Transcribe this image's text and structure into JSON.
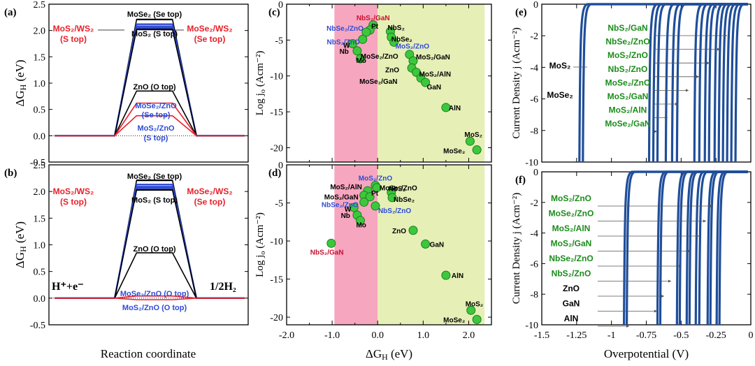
{
  "colors": {
    "black": "#000000",
    "red": "#e8202a",
    "blue": "#2e4bd6",
    "green": "#1a8c1a",
    "crimson": "#c8102e",
    "pink": "#f7a6bf",
    "yellowgreen": "#e6efb6",
    "curve": "#1f4e9a",
    "point": "#3cc83c"
  },
  "chart_data": [
    {
      "id": "a",
      "type": "line",
      "panel_label": "(a)",
      "ylabel": "ΔG_H (eV)",
      "ylim": [
        -0.5,
        2.5
      ],
      "yticks": [
        "-0.5",
        "0.0",
        "0.5",
        "1.0",
        "1.5",
        "2.0",
        "2.5"
      ],
      "plateaus": [
        {
          "label": "MoSe₂ (Se top)",
          "value": 2.21,
          "color": "black"
        },
        {
          "label": "",
          "value": 2.12,
          "color": "blue"
        },
        {
          "label": "",
          "value": 2.08,
          "color": "blue"
        },
        {
          "label": "",
          "value": 2.05,
          "color": "blue"
        },
        {
          "label": "MoS₂ (S top)",
          "value": 2.02,
          "color": "black"
        },
        {
          "label": "ZnO (O top)",
          "value": 0.85,
          "color": "black"
        },
        {
          "label": "",
          "value": 0.62,
          "color": "red"
        },
        {
          "label": "",
          "value": 0.38,
          "color": "red"
        }
      ],
      "annotations": [
        {
          "text": "MoSe₂ (Se top)",
          "color": "black"
        },
        {
          "text": "MoS₂ (S top)",
          "color": "black"
        },
        {
          "text": "MoS₂/WS₂",
          "color": "red"
        },
        {
          "text": "(S top)",
          "color": "red"
        },
        {
          "text": "MoSe₂/WS₂",
          "color": "red"
        },
        {
          "text": "(Se top)",
          "color": "red"
        },
        {
          "text": "ZnO (O top)",
          "color": "black"
        },
        {
          "text": "MoSe₂/ZnO",
          "color": "blue"
        },
        {
          "text": "(Se top)",
          "color": "blue"
        },
        {
          "text": "MoS₂/ZnO",
          "color": "blue"
        },
        {
          "text": "(S top)",
          "color": "blue"
        }
      ]
    },
    {
      "id": "b",
      "type": "line",
      "panel_label": "(b)",
      "ylabel": "ΔG_H (eV)",
      "xlabel": "Reaction coordinate",
      "ylim": [
        -0.5,
        2.5
      ],
      "yticks": [
        "-0.5",
        "0.0",
        "0.5",
        "1.0",
        "1.5",
        "2.0",
        "2.5"
      ],
      "state_left": "H⁺+e⁻",
      "state_right": "1/2H₂",
      "plateaus": [
        {
          "label": "MoSe₂ (Se top)",
          "value": 2.21,
          "color": "black"
        },
        {
          "label": "",
          "value": 2.13,
          "color": "blue"
        },
        {
          "label": "",
          "value": 2.09,
          "color": "blue"
        },
        {
          "label": "",
          "value": 2.06,
          "color": "blue"
        },
        {
          "label": "MoS₂ (S top)",
          "value": 2.03,
          "color": "black"
        },
        {
          "label": "ZnO (O top)",
          "value": 0.85,
          "color": "black"
        },
        {
          "label": "",
          "value": 0.04,
          "color": "red"
        },
        {
          "label": "",
          "value": -0.03,
          "color": "red"
        }
      ],
      "annotations": [
        {
          "text": "MoSe₂ (Se top)",
          "color": "black"
        },
        {
          "text": "MoS₂ (S top)",
          "color": "black"
        },
        {
          "text": "MoS₂/WS₂",
          "color": "red"
        },
        {
          "text": "(S top)",
          "color": "red"
        },
        {
          "text": "MoSe₂/WS₂",
          "color": "red"
        },
        {
          "text": "(Se top)",
          "color": "red"
        },
        {
          "text": "ZnO (O top)",
          "color": "black"
        },
        {
          "text": "MoSe₂/ZnO (O top)",
          "color": "blue"
        },
        {
          "text": "MoS₂/ZnO (O top)",
          "color": "blue"
        }
      ]
    },
    {
      "id": "c",
      "type": "scatter",
      "panel_label": "(c)",
      "ylabel": "Log j₀ (Acm⁻²)",
      "xlim": [
        -2.0,
        2.5
      ],
      "ylim": [
        -22,
        0
      ],
      "yticks": [
        "-20",
        "-15",
        "-10",
        "-5",
        "0"
      ],
      "bands": [
        [
          -0.95,
          0.0,
          "pink"
        ],
        [
          0.0,
          2.35,
          "yellowgreen"
        ]
      ],
      "points": [
        {
          "label": "NbS₂/GaN",
          "x": -0.1,
          "y": -2.9,
          "color": "crimson"
        },
        {
          "label": "Pt",
          "x": -0.17,
          "y": -3.6,
          "color": "black"
        },
        {
          "label": "NbSe₂/ZnO",
          "x": -0.25,
          "y": -3.9,
          "color": "blue"
        },
        {
          "label": "NbS₂/ZnO",
          "x": -0.33,
          "y": -4.9,
          "color": "blue"
        },
        {
          "label": "W",
          "x": -0.55,
          "y": -5.5,
          "color": "black"
        },
        {
          "label": "Nb",
          "x": -0.45,
          "y": -6.5,
          "color": "black"
        },
        {
          "label": "Mo",
          "x": -0.38,
          "y": -7.6,
          "color": "black"
        },
        {
          "label": "NbS₂",
          "x": 0.28,
          "y": -3.8,
          "color": "black"
        },
        {
          "label": "NbSe₂",
          "x": 0.3,
          "y": -4.6,
          "color": "black"
        },
        {
          "label": "MoS₂/ZnO",
          "x": 0.36,
          "y": -5.3,
          "color": "blue"
        },
        {
          "label": "MoSe₂/ZnO",
          "x": 0.7,
          "y": -7.0,
          "color": "black"
        },
        {
          "label": "MoS₂/GaN",
          "x": 0.78,
          "y": -7.9,
          "color": "black"
        },
        {
          "label": "ZnO",
          "x": 0.75,
          "y": -8.9,
          "color": "black"
        },
        {
          "label": "MoS₂/AlN",
          "x": 0.85,
          "y": -9.5,
          "color": "black"
        },
        {
          "label": "MoSe₂/GaN",
          "x": 0.95,
          "y": -10.3,
          "color": "black"
        },
        {
          "label": "GaN",
          "x": 1.05,
          "y": -10.9,
          "color": "black"
        },
        {
          "label": "AlN",
          "x": 1.5,
          "y": -14.4,
          "color": "black"
        },
        {
          "label": "MoS₂",
          "x": 2.03,
          "y": -19.1,
          "color": "black"
        },
        {
          "label": "MoSe₂",
          "x": 2.18,
          "y": -20.3,
          "color": "black"
        }
      ]
    },
    {
      "id": "d",
      "type": "scatter",
      "panel_label": "(d)",
      "ylabel": "Log j₀ (Acm⁻²)",
      "xlabel": "ΔG_H (eV)",
      "xlim": [
        -2.0,
        2.5
      ],
      "ylim": [
        -21,
        0
      ],
      "xticks": [
        "-2.0",
        "-1.0",
        "0.0",
        "1.0",
        "2.0"
      ],
      "yticks": [
        "-20",
        "-15",
        "-10",
        "-5",
        "0"
      ],
      "bands": [
        [
          -0.95,
          0.0,
          "pink"
        ],
        [
          0.0,
          2.35,
          "yellowgreen"
        ]
      ],
      "points": [
        {
          "label": "MoS₂/ZnO",
          "x": -0.05,
          "y": -2.7,
          "color": "blue"
        },
        {
          "label": "MoSe₂/ZnO",
          "x": -0.02,
          "y": -3.0,
          "color": "black"
        },
        {
          "label": "MoS₂/AlN",
          "x": -0.22,
          "y": -3.4,
          "color": "black"
        },
        {
          "label": "MoS₂/GaN",
          "x": -0.3,
          "y": -4.0,
          "color": "black"
        },
        {
          "label": "Pt",
          "x": -0.17,
          "y": -4.2,
          "color": "black"
        },
        {
          "label": "NbSe₂/ZnO",
          "x": -0.3,
          "y": -4.9,
          "color": "blue"
        },
        {
          "label": "NbS₂",
          "x": 0.3,
          "y": -3.6,
          "color": "black"
        },
        {
          "label": "NbSe₂",
          "x": 0.32,
          "y": -4.3,
          "color": "black"
        },
        {
          "label": "NbS₂/ZnO",
          "x": -0.05,
          "y": -5.4,
          "color": "blue"
        },
        {
          "label": "W",
          "x": -0.52,
          "y": -5.6,
          "color": "black"
        },
        {
          "label": "Nb",
          "x": -0.45,
          "y": -6.6,
          "color": "black"
        },
        {
          "label": "Mo",
          "x": -0.38,
          "y": -7.3,
          "color": "black"
        },
        {
          "label": "NbS₂/GaN",
          "x": -1.02,
          "y": -10.3,
          "color": "crimson"
        },
        {
          "label": "ZnO",
          "x": 0.78,
          "y": -8.6,
          "color": "black"
        },
        {
          "label": "GaN",
          "x": 1.05,
          "y": -10.4,
          "color": "black"
        },
        {
          "label": "AlN",
          "x": 1.5,
          "y": -14.5,
          "color": "black"
        },
        {
          "label": "MoS₂",
          "x": 2.05,
          "y": -19.1,
          "color": "black"
        },
        {
          "label": "MoSe₂",
          "x": 2.18,
          "y": -20.3,
          "color": "black"
        }
      ]
    },
    {
      "id": "e",
      "type": "line",
      "panel_label": "(e)",
      "ylabel": "Current Density j (Acm⁻²)",
      "xlim": [
        -1.5,
        0
      ],
      "ylim": [
        -10,
        0
      ],
      "yticks": [
        "-10",
        "-8",
        "-6",
        "-4",
        "-2",
        "0"
      ],
      "onsets": [
        -1.22,
        -1.195,
        -0.72,
        -0.69,
        -0.66,
        -0.6,
        -0.555,
        -0.52,
        -0.395,
        -0.36,
        -0.32,
        -0.29,
        -0.25,
        -0.22,
        -0.19,
        -0.16,
        -0.13,
        -0.1
      ],
      "legend": [
        {
          "label": "NbS₂/GaN",
          "color": "green"
        },
        {
          "label": "NbSe₂/ZnO",
          "color": "green"
        },
        {
          "label": "MoS₂/ZnO",
          "color": "green"
        },
        {
          "label": "NbS₂/ZnO",
          "color": "green"
        },
        {
          "label": "MoSe₂/ZnO",
          "color": "green"
        },
        {
          "label": "MoS₂/GaN",
          "color": "green"
        },
        {
          "label": "MoS₂/AlN",
          "color": "green"
        },
        {
          "label": "MoSe₂/GaN",
          "color": "green"
        }
      ],
      "side_labels": [
        "MoS₂",
        "MoSe₂"
      ]
    },
    {
      "id": "f",
      "type": "line",
      "panel_label": "(f)",
      "ylabel": "Current Density j (Acm⁻²)",
      "xlabel": "Overpotential (V)",
      "xlim": [
        -1.5,
        0
      ],
      "ylim": [
        -10,
        0
      ],
      "xticks": [
        "-1.5",
        "-1.25",
        "-1",
        "-0.75",
        "-0.5",
        "-0.25",
        "0"
      ],
      "yticks": [
        "-10",
        "-8",
        "-6",
        "-4",
        "-2",
        "0"
      ],
      "onsets": [
        -0.9,
        -0.88,
        -0.66,
        -0.64,
        -0.52,
        -0.5,
        -0.45,
        -0.43,
        -0.385,
        -0.36,
        -0.3,
        -0.28,
        -0.235,
        -0.215
      ],
      "legend": [
        {
          "label": "MoS₂/ZnO",
          "color": "green"
        },
        {
          "label": "MoSe₂/ZnO",
          "color": "green"
        },
        {
          "label": "MoS₂/AlN",
          "color": "green"
        },
        {
          "label": "MoS₂/GaN",
          "color": "green"
        },
        {
          "label": "NbSe₂/ZnO",
          "color": "green"
        },
        {
          "label": "NbS₂/ZnO",
          "color": "green"
        },
        {
          "label": "ZnO",
          "color": "black"
        },
        {
          "label": "GaN",
          "color": "black"
        },
        {
          "label": "AlN",
          "color": "black"
        }
      ]
    }
  ]
}
